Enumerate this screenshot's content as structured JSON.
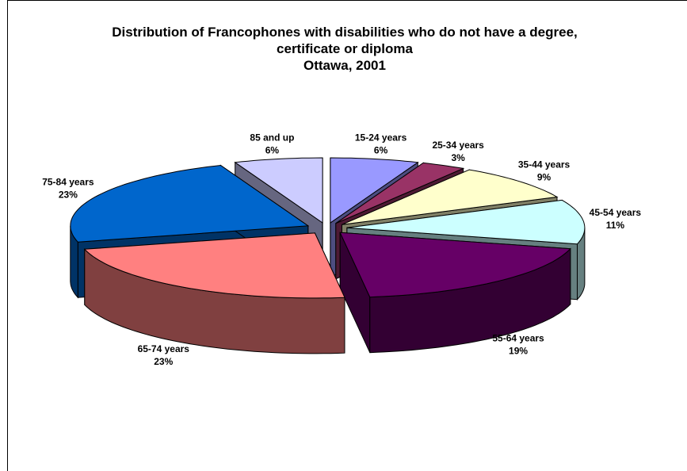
{
  "chart_data": {
    "type": "pie3d",
    "title": "Distribution of Francophones with disabilities who do not have a degree, certificate or diploma",
    "subtitle": "Ottawa, 2001",
    "categories": [
      "15-24 years",
      "25-34 years",
      "35-44 years",
      "45-54 years",
      "55-64 years",
      "65-74 years",
      "75-84 years",
      "85 and up"
    ],
    "values": [
      6,
      3,
      9,
      11,
      19,
      23,
      23,
      6
    ],
    "value_labels": [
      "6%",
      "3%",
      "9%",
      "11%",
      "19%",
      "23%",
      "23%",
      "6%"
    ],
    "colors": [
      "#9999ff",
      "#993366",
      "#ffffcc",
      "#ccffff",
      "#660066",
      "#ff8080",
      "#0066cc",
      "#ccccff"
    ]
  }
}
